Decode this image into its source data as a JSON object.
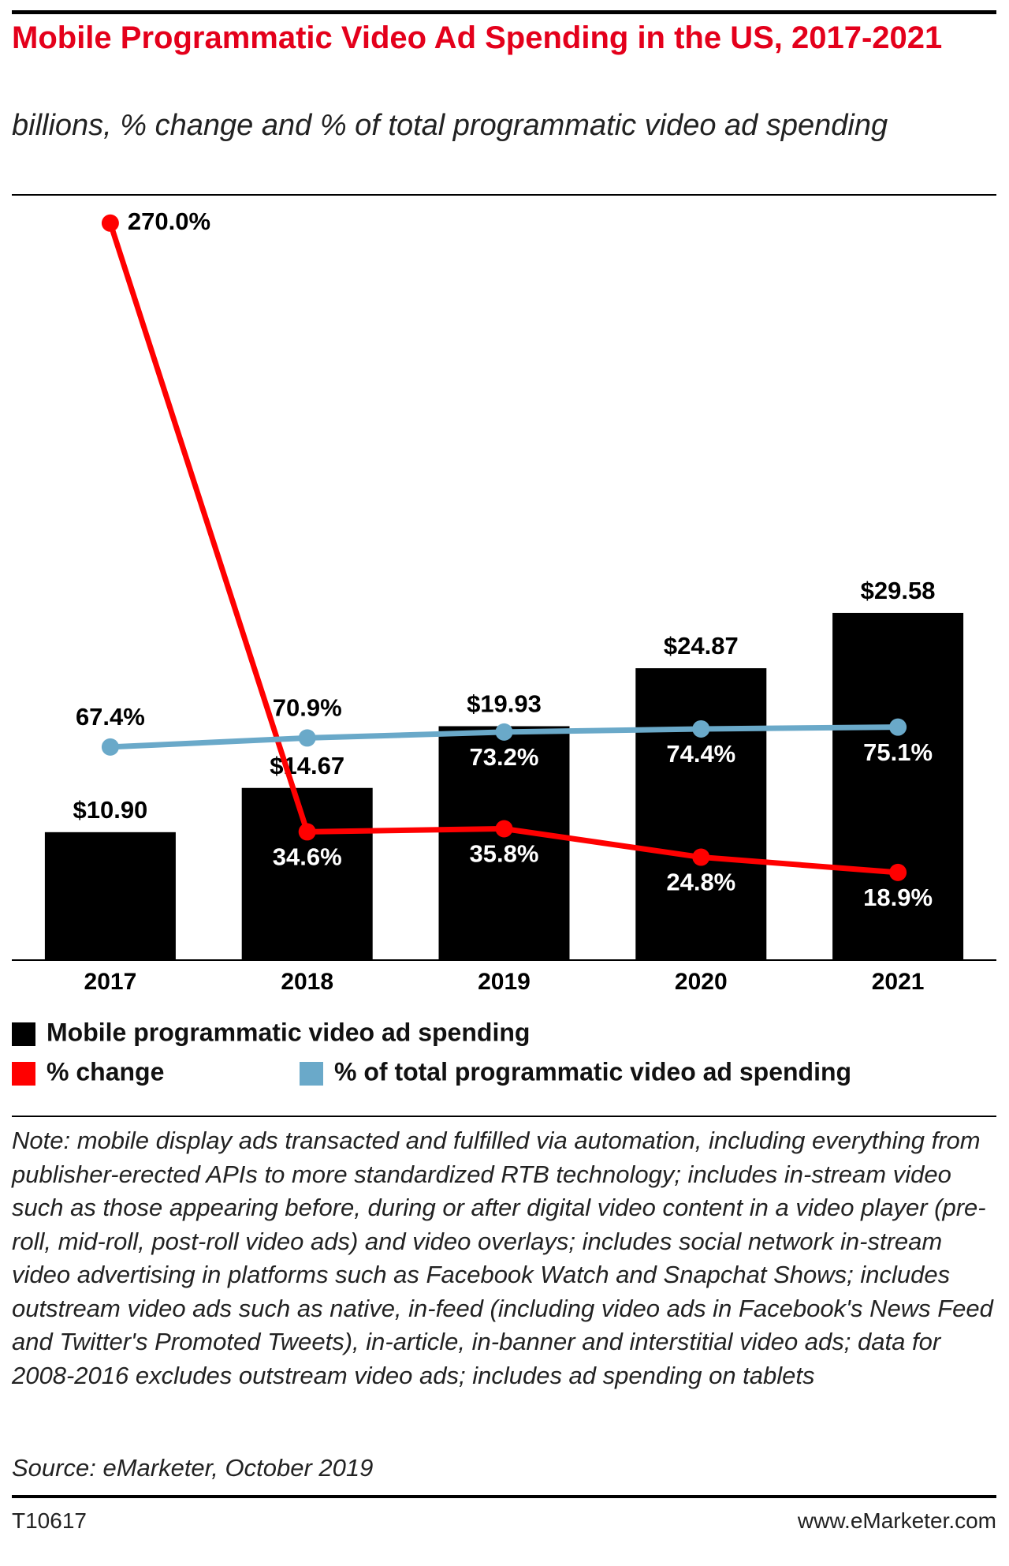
{
  "chart_data": {
    "type": "bar",
    "title": "Mobile Programmatic Video Ad Spending in the US, 2017-2021",
    "subtitle": "billions, % change and % of total programmatic video ad spending",
    "categories": [
      "2017",
      "2018",
      "2019",
      "2020",
      "2021"
    ],
    "ylim": [
      0,
      65
    ],
    "y2lim": [
      -15,
      280
    ],
    "series": [
      {
        "name": "Mobile programmatic video ad spending",
        "type": "bar",
        "color": "#000000",
        "values": [
          10.9,
          14.67,
          19.93,
          24.87,
          29.58
        ],
        "value_labels": [
          "$10.90",
          "$14.67",
          "$19.93",
          "$24.87",
          "$29.58"
        ]
      },
      {
        "name": "% change",
        "type": "line",
        "axis": "y2",
        "color": "#ff0000",
        "values": [
          270.0,
          34.6,
          35.8,
          24.8,
          18.9
        ],
        "value_labels": [
          "270.0%",
          "34.6%",
          "35.8%",
          "24.8%",
          "18.9%"
        ]
      },
      {
        "name": "% of total programmatic video ad spending",
        "type": "line",
        "axis": "y2",
        "color": "#6aa9c9",
        "values": [
          67.4,
          70.9,
          73.2,
          74.4,
          75.1
        ],
        "value_labels": [
          "67.4%",
          "70.9%",
          "73.2%",
          "74.4%",
          "75.1%"
        ]
      }
    ],
    "note": "Note: mobile display ads transacted and fulfilled via automation, including everything from publisher-erected APIs to more standardized RTB technology; includes in-stream video such as those appearing before, during or after digital video content in a video player (pre-roll, mid-roll, post-roll video ads) and video overlays; includes social network in-stream video advertising in platforms such as Facebook Watch and Snapchat Shows; includes outstream video ads such as native, in-feed (including video ads in Facebook's News Feed and Twitter's Promoted Tweets), in-article, in-banner and interstitial video ads; data for 2008-2016 excludes outstream video ads; includes ad spending on tablets",
    "source": "Source: eMarketer, October 2019",
    "chart_id": "T10617",
    "brand": "www.eMarketer.com"
  }
}
